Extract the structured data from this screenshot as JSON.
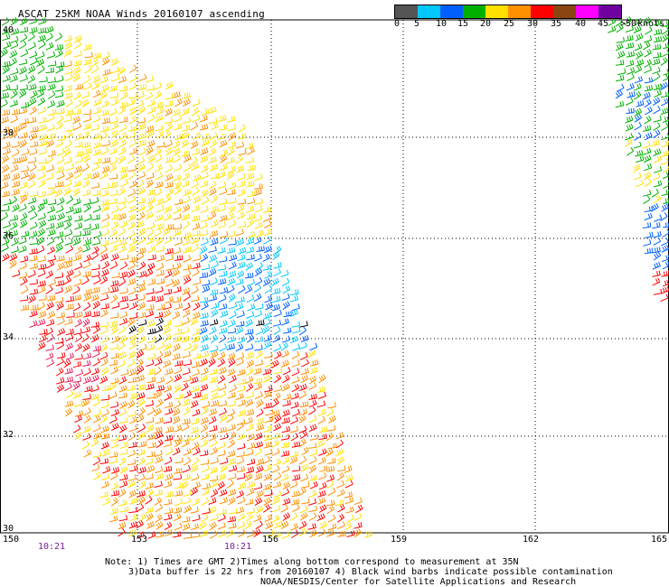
{
  "title": "ASCAT 25KM NOAA Winds 20160107 ascending",
  "legend": {
    "colors": [
      "#555555",
      "#00c8ff",
      "#0060ff",
      "#00b000",
      "#ffe000",
      "#ff9000",
      "#ff0000",
      "#8b4513",
      "#ff00ff",
      "#7000a0"
    ],
    "labels": [
      "0",
      "5",
      "10",
      "15",
      "20",
      "25",
      "30",
      "35",
      "40",
      "45",
      ">50",
      "knots"
    ]
  },
  "latitude_labels": [
    "40",
    "38",
    "36",
    "34",
    "32",
    "30"
  ],
  "longitude_labels": [
    "150",
    "153",
    "156",
    "159",
    "162",
    "165"
  ],
  "time_labels": [
    "10:21",
    "10:21"
  ],
  "notes": [
    "Note: 1) Times are GMT 2)Times along bottom correspond to measurement at 35N",
    "3)Data buffer is 22 hrs from 20160107 4) Black wind barbs indicate possible contamination",
    "NOAA/NESDIS/Center for Satellite Applications and Research"
  ]
}
